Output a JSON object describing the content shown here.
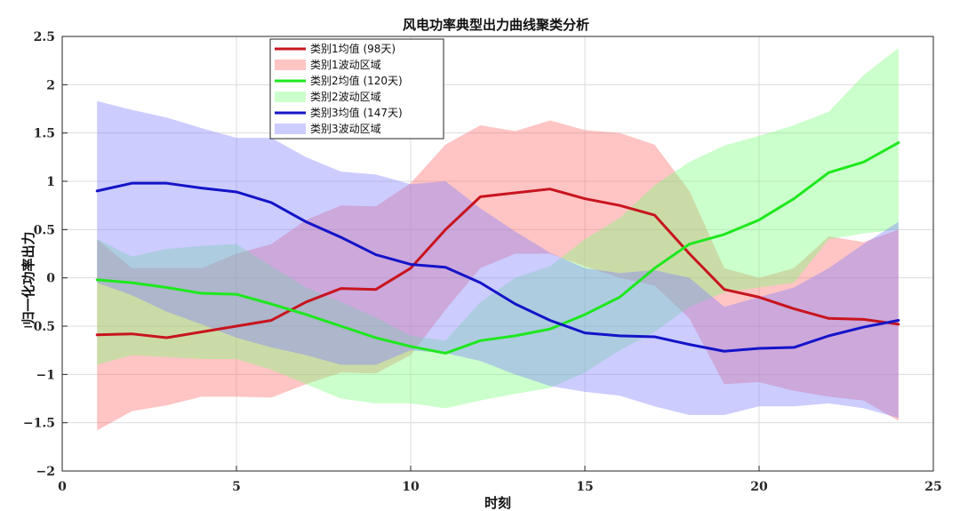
{
  "chart_data": {
    "type": "line",
    "title": "风电功率典型出力曲线聚类分析",
    "xlabel": "时刻",
    "ylabel": "归一化功率出力",
    "xlim": [
      0,
      25
    ],
    "ylim": [
      -2,
      2.5
    ],
    "xticks": [
      0,
      5,
      10,
      15,
      20,
      25
    ],
    "yticks": [
      -2,
      -1.5,
      -1,
      -0.5,
      0,
      0.5,
      1,
      1.5,
      2,
      2.5
    ],
    "grid": true,
    "legend_position": "top-left",
    "x": [
      1,
      2,
      3,
      4,
      5,
      6,
      7,
      8,
      9,
      10,
      11,
      12,
      13,
      14,
      15,
      16,
      17,
      18,
      19,
      20,
      21,
      22,
      23,
      24
    ],
    "series": [
      {
        "name": "类别1均值 (98天)",
        "band_name": "类别1波动区域",
        "color": "#c8141e",
        "band_color": "#ff6b6b",
        "values": [
          -0.59,
          -0.58,
          -0.62,
          -0.56,
          -0.5,
          -0.44,
          -0.25,
          -0.11,
          -0.12,
          0.1,
          0.5,
          0.84,
          0.88,
          0.92,
          0.82,
          0.75,
          0.65,
          0.25,
          -0.12,
          -0.2,
          -0.32,
          -0.42,
          -0.43,
          -0.48
        ],
        "upper": [
          0.4,
          0.1,
          0.1,
          0.1,
          0.25,
          0.35,
          0.6,
          0.75,
          0.74,
          0.98,
          1.38,
          1.58,
          1.52,
          1.63,
          1.53,
          1.5,
          1.38,
          0.9,
          0.1,
          0.0,
          0.1,
          0.43,
          0.37,
          0.5
        ],
        "lower": [
          -1.58,
          -1.38,
          -1.32,
          -1.23,
          -1.23,
          -1.24,
          -1.1,
          -0.98,
          -0.99,
          -0.8,
          -0.33,
          0.1,
          0.25,
          0.25,
          0.12,
          0.0,
          -0.08,
          -0.42,
          -1.1,
          -1.08,
          -1.17,
          -1.23,
          -1.27,
          -1.48
        ]
      },
      {
        "name": "类别2均值 (120天)",
        "band_name": "类别2波动区域",
        "color": "#1ee81e",
        "band_color": "#7cff7c",
        "values": [
          -0.02,
          -0.05,
          -0.1,
          -0.16,
          -0.17,
          -0.27,
          -0.38,
          -0.5,
          -0.62,
          -0.71,
          -0.78,
          -0.65,
          -0.6,
          -0.53,
          -0.38,
          -0.2,
          0.1,
          0.35,
          0.45,
          0.6,
          0.82,
          1.09,
          1.2,
          1.4
        ],
        "upper": [
          0.4,
          0.22,
          0.3,
          0.33,
          0.35,
          0.12,
          -0.1,
          -0.25,
          -0.41,
          -0.6,
          -0.65,
          -0.25,
          0.0,
          0.12,
          0.4,
          0.62,
          0.96,
          1.2,
          1.37,
          1.47,
          1.58,
          1.72,
          2.1,
          2.38
        ],
        "lower": [
          -0.9,
          -0.8,
          -0.82,
          -0.84,
          -0.84,
          -0.95,
          -1.1,
          -1.25,
          -1.3,
          -1.3,
          -1.35,
          -1.27,
          -1.2,
          -1.14,
          -0.98,
          -0.75,
          -0.56,
          -0.3,
          -0.15,
          -0.1,
          -0.05,
          0.4,
          0.46,
          0.5
        ]
      },
      {
        "name": "类别3均值 (147天)",
        "band_name": "类别3波动区域",
        "color": "#1414c8",
        "band_color": "#8080ff",
        "values": [
          0.9,
          0.98,
          0.98,
          0.93,
          0.89,
          0.78,
          0.58,
          0.42,
          0.24,
          0.14,
          0.11,
          -0.05,
          -0.27,
          -0.44,
          -0.57,
          -0.6,
          -0.61,
          -0.69,
          -0.76,
          -0.73,
          -0.72,
          -0.6,
          -0.51,
          -0.44
        ],
        "upper": [
          1.83,
          1.74,
          1.66,
          1.55,
          1.45,
          1.45,
          1.25,
          1.1,
          1.07,
          0.97,
          1.0,
          0.72,
          0.48,
          0.26,
          0.1,
          0.05,
          0.08,
          0.0,
          -0.3,
          -0.2,
          -0.1,
          0.1,
          0.35,
          0.58
        ],
        "lower": [
          -0.05,
          -0.18,
          -0.35,
          -0.48,
          -0.62,
          -0.72,
          -0.8,
          -0.9,
          -0.9,
          -0.75,
          -0.78,
          -0.86,
          -1.0,
          -1.12,
          -1.18,
          -1.22,
          -1.33,
          -1.42,
          -1.42,
          -1.33,
          -1.33,
          -1.3,
          -1.35,
          -1.45
        ]
      }
    ]
  }
}
